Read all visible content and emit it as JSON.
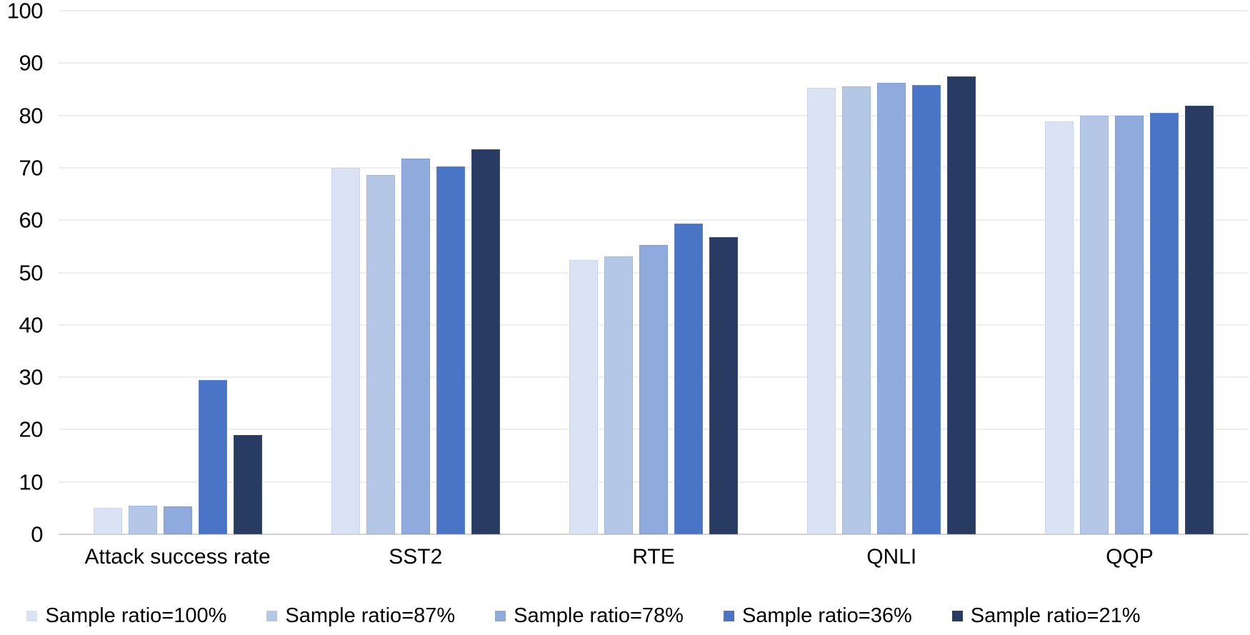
{
  "chart_data": {
    "type": "bar",
    "title": "",
    "xlabel": "",
    "ylabel": "",
    "ylim": [
      0,
      100
    ],
    "yticks": [
      0,
      10,
      20,
      30,
      40,
      50,
      60,
      70,
      80,
      90,
      100
    ],
    "grid": true,
    "legend_position": "bottom",
    "categories": [
      "Attack success rate",
      "SST2",
      "RTE",
      "QNLI",
      "QQP"
    ],
    "series": [
      {
        "name": "Sample ratio=100%",
        "color": "#dae3f3",
        "border_color": "#c7d5ec",
        "values": [
          5.0,
          70.0,
          52.4,
          85.2,
          78.9
        ]
      },
      {
        "name": "Sample ratio=87%",
        "color": "#b4c7e7",
        "border_color": "#a2b8de",
        "values": [
          5.4,
          68.6,
          53.1,
          85.5,
          79.9
        ]
      },
      {
        "name": "Sample ratio=78%",
        "color": "#8faadc",
        "border_color": "#7e9bd2",
        "values": [
          5.3,
          71.7,
          55.2,
          86.2,
          79.9
        ]
      },
      {
        "name": "Sample ratio=36%",
        "color": "#4a75c6",
        "border_color": "#5d84ce",
        "values": [
          29.5,
          70.2,
          59.3,
          85.8,
          80.5
        ]
      },
      {
        "name": "Sample ratio=21%",
        "color": "#283c63",
        "border_color": "#3a4e77",
        "values": [
          19.0,
          73.5,
          56.8,
          87.4,
          81.8
        ]
      }
    ]
  },
  "colors": {
    "background": "#ffffff",
    "gridline": "#eeeeee",
    "axis_baseline": "#d2d2d2",
    "text": "#000000"
  }
}
